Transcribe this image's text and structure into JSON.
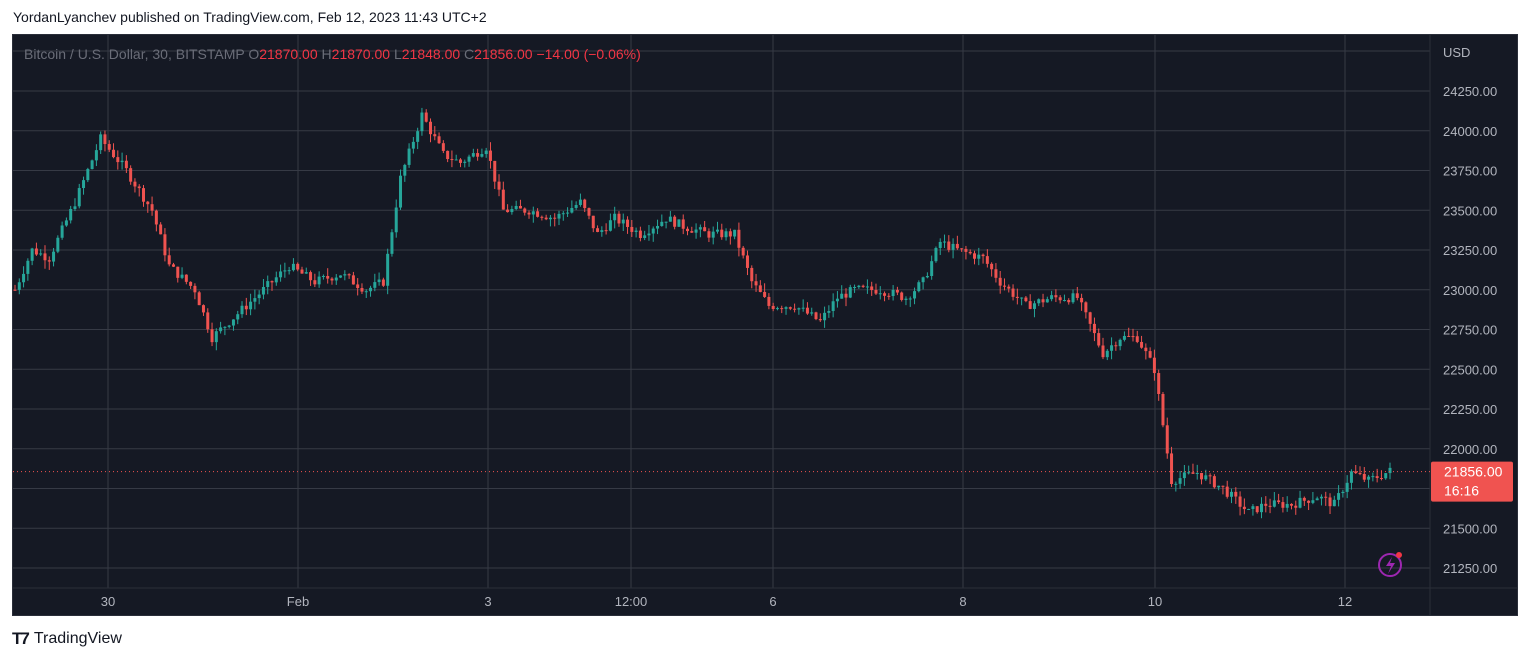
{
  "header": {
    "text": "YordanLyanchev published on TradingView.com, Feb 12, 2023 11:43 UTC+2"
  },
  "legend": {
    "symbol": "Bitcoin / U.S. Dollar, 30, BITSTAMP",
    "o_label": "O",
    "o_value": "21870.00",
    "h_label": "H",
    "h_value": "21870.00",
    "l_label": "L",
    "l_value": "21848.00",
    "c_label": "C",
    "c_value": "21856.00",
    "change": "−14.00 (−0.06%)"
  },
  "price_axis": {
    "currency": "USD",
    "last_price": "21856.00",
    "countdown": "16:16"
  },
  "footer": {
    "brand": "TradingView",
    "logo_icon": "tradingview-logo-icon"
  },
  "colors": {
    "up": "#26a69a",
    "down": "#ef5350",
    "background": "#151924",
    "grid": "#363a45",
    "last_price_badge": "#f05350"
  },
  "chart_data": {
    "type": "candlestick",
    "title": "Bitcoin / U.S. Dollar, 30, BITSTAMP",
    "xlabel": "",
    "ylabel": "USD",
    "ylim": [
      21175,
      24400
    ],
    "y_ticks": [
      24250,
      24000,
      23750,
      23500,
      23250,
      23000,
      22750,
      22500,
      22250,
      22000,
      21750,
      21500,
      21250
    ],
    "y_tick_labels": [
      "24250.00",
      "24000.00",
      "23750.00",
      "23500.00",
      "23250.00",
      "23000.00",
      "22750.00",
      "22500.00",
      "22250.00",
      "22000.00",
      "21750.00",
      "21500.00",
      "21250.00"
    ],
    "x_tick_labels": [
      "30",
      "Feb",
      "3",
      "12:00",
      "6",
      "8",
      "10",
      "12"
    ],
    "last_price": 21856,
    "grid": true,
    "path_anchors": [
      [
        0,
        23000
      ],
      [
        4,
        23250
      ],
      [
        8,
        23200
      ],
      [
        14,
        23550
      ],
      [
        20,
        23950
      ],
      [
        26,
        23750
      ],
      [
        32,
        23500
      ],
      [
        36,
        23150
      ],
      [
        42,
        23000
      ],
      [
        46,
        22700
      ],
      [
        52,
        22850
      ],
      [
        58,
        23000
      ],
      [
        64,
        23150
      ],
      [
        70,
        23050
      ],
      [
        76,
        23100
      ],
      [
        82,
        23000
      ],
      [
        86,
        23050
      ],
      [
        90,
        23700
      ],
      [
        95,
        24100
      ],
      [
        100,
        23850
      ],
      [
        104,
        23800
      ],
      [
        110,
        23900
      ],
      [
        114,
        23500
      ],
      [
        120,
        23500
      ],
      [
        126,
        23450
      ],
      [
        132,
        23550
      ],
      [
        136,
        23350
      ],
      [
        140,
        23450
      ],
      [
        146,
        23350
      ],
      [
        152,
        23450
      ],
      [
        156,
        23400
      ],
      [
        162,
        23350
      ],
      [
        168,
        23350
      ],
      [
        172,
        23050
      ],
      [
        176,
        22900
      ],
      [
        182,
        22900
      ],
      [
        188,
        22800
      ],
      [
        192,
        22950
      ],
      [
        196,
        23000
      ],
      [
        202,
        23000
      ],
      [
        208,
        22950
      ],
      [
        212,
        23050
      ],
      [
        216,
        23300
      ],
      [
        220,
        23250
      ],
      [
        226,
        23200
      ],
      [
        230,
        23050
      ],
      [
        236,
        22900
      ],
      [
        242,
        22950
      ],
      [
        248,
        22950
      ],
      [
        254,
        22600
      ],
      [
        258,
        22700
      ],
      [
        262,
        22700
      ],
      [
        266,
        22500
      ],
      [
        270,
        21800
      ],
      [
        276,
        21850
      ],
      [
        282,
        21750
      ],
      [
        288,
        21600
      ],
      [
        292,
        21650
      ],
      [
        298,
        21650
      ],
      [
        304,
        21700
      ],
      [
        308,
        21650
      ],
      [
        312,
        21850
      ],
      [
        316,
        21800
      ],
      [
        321,
        21860
      ]
    ]
  }
}
